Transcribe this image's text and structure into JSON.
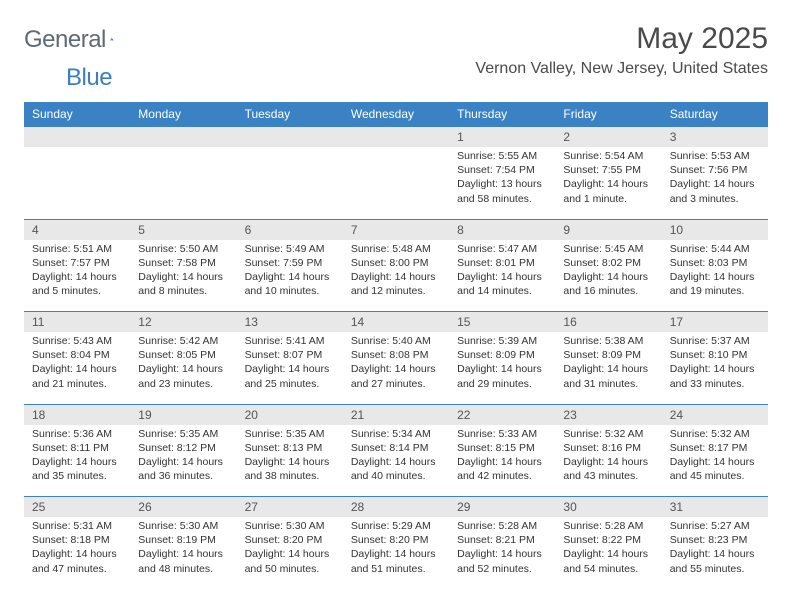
{
  "brand": {
    "part1": "General",
    "part2": "Blue"
  },
  "title": "May 2025",
  "location": "Vernon Valley, New Jersey, United States",
  "colors": {
    "header_bg": "#3b82c4",
    "header_text": "#ffffff",
    "daynum_bg": "#e8e8e8",
    "border": "#3b82c4",
    "text": "#333333",
    "logo_gray": "#5f6a72",
    "logo_blue": "#3b7fbd"
  },
  "weekdays": [
    "Sunday",
    "Monday",
    "Tuesday",
    "Wednesday",
    "Thursday",
    "Friday",
    "Saturday"
  ],
  "weeks": [
    [
      null,
      null,
      null,
      null,
      {
        "d": "1",
        "sr": "Sunrise: 5:55 AM",
        "ss": "Sunset: 7:54 PM",
        "dl1": "Daylight: 13 hours",
        "dl2": "and 58 minutes."
      },
      {
        "d": "2",
        "sr": "Sunrise: 5:54 AM",
        "ss": "Sunset: 7:55 PM",
        "dl1": "Daylight: 14 hours",
        "dl2": "and 1 minute."
      },
      {
        "d": "3",
        "sr": "Sunrise: 5:53 AM",
        "ss": "Sunset: 7:56 PM",
        "dl1": "Daylight: 14 hours",
        "dl2": "and 3 minutes."
      }
    ],
    [
      {
        "d": "4",
        "sr": "Sunrise: 5:51 AM",
        "ss": "Sunset: 7:57 PM",
        "dl1": "Daylight: 14 hours",
        "dl2": "and 5 minutes."
      },
      {
        "d": "5",
        "sr": "Sunrise: 5:50 AM",
        "ss": "Sunset: 7:58 PM",
        "dl1": "Daylight: 14 hours",
        "dl2": "and 8 minutes."
      },
      {
        "d": "6",
        "sr": "Sunrise: 5:49 AM",
        "ss": "Sunset: 7:59 PM",
        "dl1": "Daylight: 14 hours",
        "dl2": "and 10 minutes."
      },
      {
        "d": "7",
        "sr": "Sunrise: 5:48 AM",
        "ss": "Sunset: 8:00 PM",
        "dl1": "Daylight: 14 hours",
        "dl2": "and 12 minutes."
      },
      {
        "d": "8",
        "sr": "Sunrise: 5:47 AM",
        "ss": "Sunset: 8:01 PM",
        "dl1": "Daylight: 14 hours",
        "dl2": "and 14 minutes."
      },
      {
        "d": "9",
        "sr": "Sunrise: 5:45 AM",
        "ss": "Sunset: 8:02 PM",
        "dl1": "Daylight: 14 hours",
        "dl2": "and 16 minutes."
      },
      {
        "d": "10",
        "sr": "Sunrise: 5:44 AM",
        "ss": "Sunset: 8:03 PM",
        "dl1": "Daylight: 14 hours",
        "dl2": "and 19 minutes."
      }
    ],
    [
      {
        "d": "11",
        "sr": "Sunrise: 5:43 AM",
        "ss": "Sunset: 8:04 PM",
        "dl1": "Daylight: 14 hours",
        "dl2": "and 21 minutes."
      },
      {
        "d": "12",
        "sr": "Sunrise: 5:42 AM",
        "ss": "Sunset: 8:05 PM",
        "dl1": "Daylight: 14 hours",
        "dl2": "and 23 minutes."
      },
      {
        "d": "13",
        "sr": "Sunrise: 5:41 AM",
        "ss": "Sunset: 8:07 PM",
        "dl1": "Daylight: 14 hours",
        "dl2": "and 25 minutes."
      },
      {
        "d": "14",
        "sr": "Sunrise: 5:40 AM",
        "ss": "Sunset: 8:08 PM",
        "dl1": "Daylight: 14 hours",
        "dl2": "and 27 minutes."
      },
      {
        "d": "15",
        "sr": "Sunrise: 5:39 AM",
        "ss": "Sunset: 8:09 PM",
        "dl1": "Daylight: 14 hours",
        "dl2": "and 29 minutes."
      },
      {
        "d": "16",
        "sr": "Sunrise: 5:38 AM",
        "ss": "Sunset: 8:09 PM",
        "dl1": "Daylight: 14 hours",
        "dl2": "and 31 minutes."
      },
      {
        "d": "17",
        "sr": "Sunrise: 5:37 AM",
        "ss": "Sunset: 8:10 PM",
        "dl1": "Daylight: 14 hours",
        "dl2": "and 33 minutes."
      }
    ],
    [
      {
        "d": "18",
        "sr": "Sunrise: 5:36 AM",
        "ss": "Sunset: 8:11 PM",
        "dl1": "Daylight: 14 hours",
        "dl2": "and 35 minutes."
      },
      {
        "d": "19",
        "sr": "Sunrise: 5:35 AM",
        "ss": "Sunset: 8:12 PM",
        "dl1": "Daylight: 14 hours",
        "dl2": "and 36 minutes."
      },
      {
        "d": "20",
        "sr": "Sunrise: 5:35 AM",
        "ss": "Sunset: 8:13 PM",
        "dl1": "Daylight: 14 hours",
        "dl2": "and 38 minutes."
      },
      {
        "d": "21",
        "sr": "Sunrise: 5:34 AM",
        "ss": "Sunset: 8:14 PM",
        "dl1": "Daylight: 14 hours",
        "dl2": "and 40 minutes."
      },
      {
        "d": "22",
        "sr": "Sunrise: 5:33 AM",
        "ss": "Sunset: 8:15 PM",
        "dl1": "Daylight: 14 hours",
        "dl2": "and 42 minutes."
      },
      {
        "d": "23",
        "sr": "Sunrise: 5:32 AM",
        "ss": "Sunset: 8:16 PM",
        "dl1": "Daylight: 14 hours",
        "dl2": "and 43 minutes."
      },
      {
        "d": "24",
        "sr": "Sunrise: 5:32 AM",
        "ss": "Sunset: 8:17 PM",
        "dl1": "Daylight: 14 hours",
        "dl2": "and 45 minutes."
      }
    ],
    [
      {
        "d": "25",
        "sr": "Sunrise: 5:31 AM",
        "ss": "Sunset: 8:18 PM",
        "dl1": "Daylight: 14 hours",
        "dl2": "and 47 minutes."
      },
      {
        "d": "26",
        "sr": "Sunrise: 5:30 AM",
        "ss": "Sunset: 8:19 PM",
        "dl1": "Daylight: 14 hours",
        "dl2": "and 48 minutes."
      },
      {
        "d": "27",
        "sr": "Sunrise: 5:30 AM",
        "ss": "Sunset: 8:20 PM",
        "dl1": "Daylight: 14 hours",
        "dl2": "and 50 minutes."
      },
      {
        "d": "28",
        "sr": "Sunrise: 5:29 AM",
        "ss": "Sunset: 8:20 PM",
        "dl1": "Daylight: 14 hours",
        "dl2": "and 51 minutes."
      },
      {
        "d": "29",
        "sr": "Sunrise: 5:28 AM",
        "ss": "Sunset: 8:21 PM",
        "dl1": "Daylight: 14 hours",
        "dl2": "and 52 minutes."
      },
      {
        "d": "30",
        "sr": "Sunrise: 5:28 AM",
        "ss": "Sunset: 8:22 PM",
        "dl1": "Daylight: 14 hours",
        "dl2": "and 54 minutes."
      },
      {
        "d": "31",
        "sr": "Sunrise: 5:27 AM",
        "ss": "Sunset: 8:23 PM",
        "dl1": "Daylight: 14 hours",
        "dl2": "and 55 minutes."
      }
    ]
  ]
}
